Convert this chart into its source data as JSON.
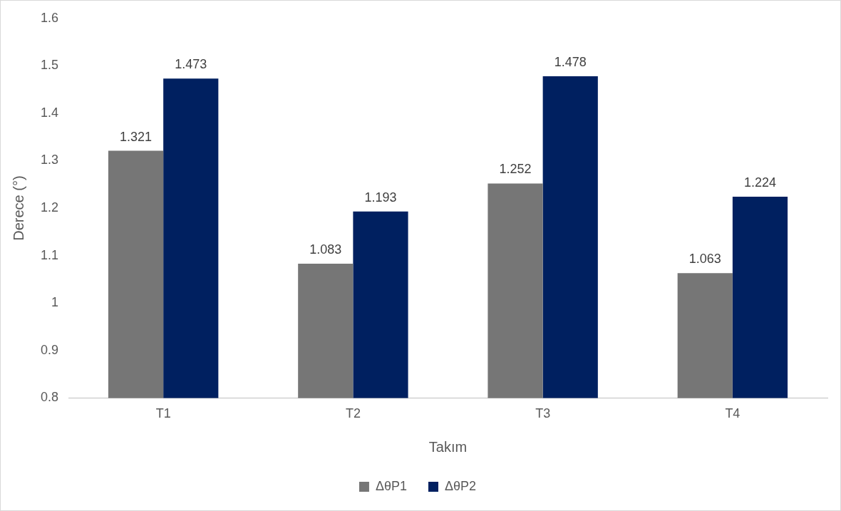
{
  "chart_data": {
    "type": "bar",
    "xlabel": "Takım",
    "ylabel": "Derece (°)",
    "categories": [
      "T1",
      "T2",
      "T3",
      "T4"
    ],
    "series": [
      {
        "name": "ΔθP1",
        "color": "#767676",
        "values": [
          1.321,
          1.083,
          1.252,
          1.063
        ]
      },
      {
        "name": "ΔθP2",
        "color": "#002060",
        "values": [
          1.473,
          1.193,
          1.478,
          1.224
        ]
      }
    ],
    "ylim": [
      0.8,
      1.6
    ],
    "yticks": [
      0.8,
      0.9,
      1,
      1.1,
      1.2,
      1.3,
      1.4,
      1.5,
      1.6
    ],
    "grid": false,
    "legend": "bottom",
    "data_labels": true
  }
}
